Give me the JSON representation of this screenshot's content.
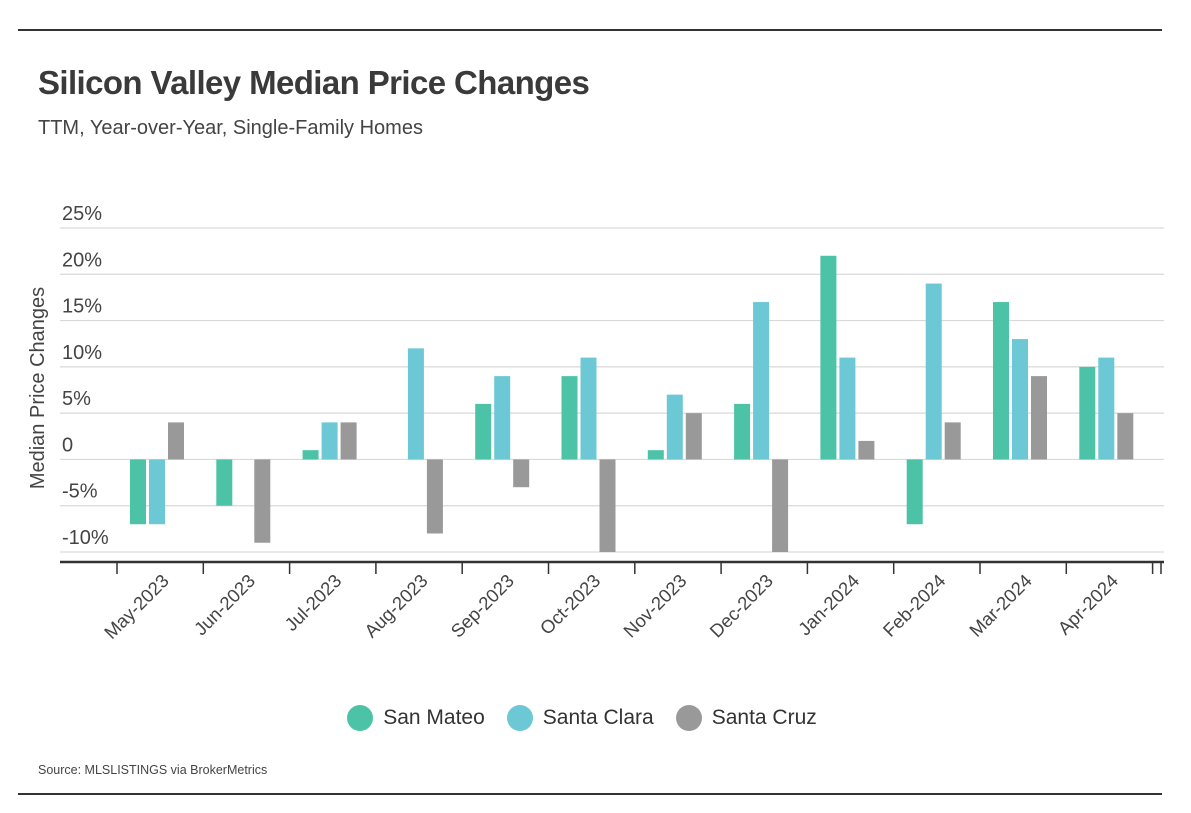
{
  "header": {
    "title": "Silicon Valley Median Price Changes",
    "subtitle": "TTM, Year-over-Year, Single-Family Homes"
  },
  "footer": {
    "source": "Source:  MLSLISTINGS via BrokerMetrics"
  },
  "colors": {
    "san_mateo": "#4cc3a6",
    "santa_clara": "#6bc8d4",
    "santa_cruz": "#999999",
    "grid": "#d9d9d9",
    "axis": "#333333"
  },
  "chart_data": {
    "type": "bar",
    "title": "Silicon Valley Median Price Changes",
    "subtitle": "TTM, Year-over-Year, Single-Family Homes",
    "xlabel": "",
    "ylabel": "Median Price Changes",
    "ylim": [
      -10,
      25
    ],
    "yticks": [
      25,
      20,
      15,
      10,
      5,
      0,
      -5,
      -10
    ],
    "ytick_labels": [
      "25%",
      "20%",
      "15%",
      "10%",
      "5%",
      "0",
      "-5%",
      "-10%"
    ],
    "grid": true,
    "legend_position": "bottom",
    "categories": [
      "May-2023",
      "Jun-2023",
      "Jul-2023",
      "Aug-2023",
      "Sep-2023",
      "Oct-2023",
      "Nov-2023",
      "Dec-2023",
      "Jan-2024",
      "Feb-2024",
      "Mar-2024",
      "Apr-2024"
    ],
    "series": [
      {
        "name": "San Mateo",
        "values": [
          -7,
          -5,
          1,
          0,
          6,
          9,
          1,
          6,
          22,
          -7,
          17,
          10
        ]
      },
      {
        "name": "Santa Clara",
        "values": [
          -7,
          0,
          4,
          12,
          9,
          11,
          7,
          17,
          11,
          19,
          13,
          11
        ]
      },
      {
        "name": "Santa Cruz",
        "values": [
          4,
          -9,
          4,
          -8,
          -3,
          -10,
          5,
          -10,
          2,
          4,
          9,
          5
        ]
      }
    ]
  }
}
